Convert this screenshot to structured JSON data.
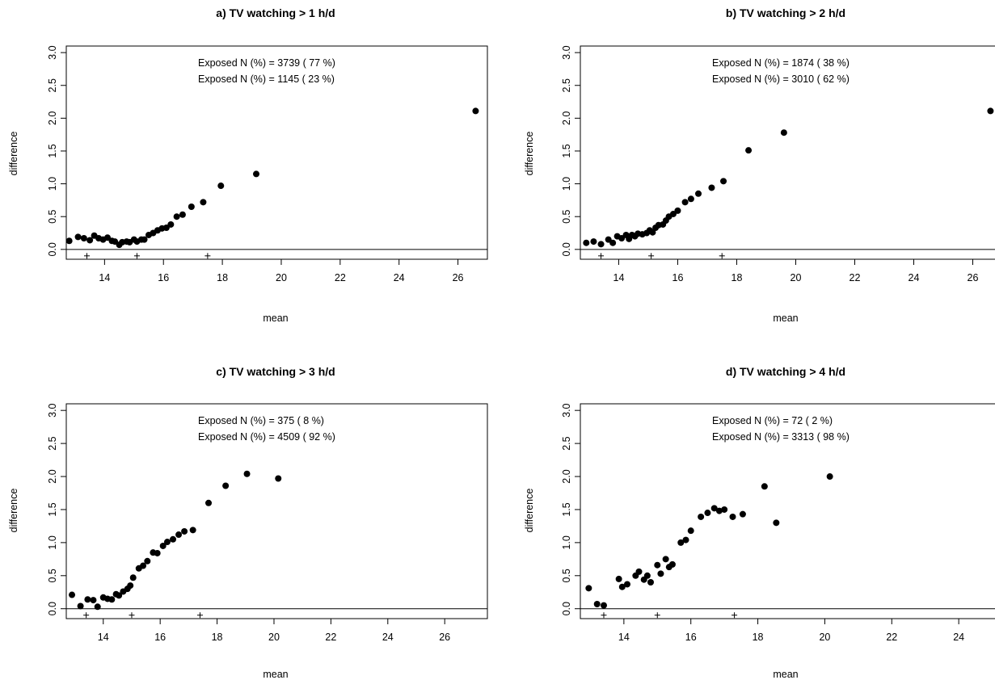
{
  "colors": {
    "ink": "#000000",
    "background": "#ffffff"
  },
  "panels": [
    {
      "title": "a) TV watching > 1 h/d",
      "xlabel": "mean",
      "ylabel": "difference",
      "annotations": [
        "Exposed N (%) =  3739 ( 77 %)",
        "Exposed N (%) =  1145 ( 23 %)"
      ],
      "x_tick_labels": [
        "14",
        "16",
        "18",
        "20",
        "22",
        "24",
        "26"
      ],
      "y_tick_labels": [
        "0.0",
        "0.5",
        "1.0",
        "1.5",
        "2.0",
        "2.5",
        "3.0"
      ]
    },
    {
      "title": "b) TV watching > 2 h/d",
      "xlabel": "mean",
      "ylabel": "difference",
      "annotations": [
        "Exposed N (%) =  1874 ( 38 %)",
        "Exposed N (%) =  3010 ( 62 %)"
      ],
      "x_tick_labels": [
        "14",
        "16",
        "18",
        "20",
        "22",
        "24",
        "26"
      ],
      "y_tick_labels": [
        "0.0",
        "0.5",
        "1.0",
        "1.5",
        "2.0",
        "2.5",
        "3.0"
      ]
    },
    {
      "title": "c) TV watching > 3 h/d",
      "xlabel": "mean",
      "ylabel": "difference",
      "annotations": [
        "Exposed N (%) =  375 ( 8 %)",
        "Exposed N (%) =  4509 ( 92 %)"
      ],
      "x_tick_labels": [
        "14",
        "16",
        "18",
        "20",
        "22",
        "24",
        "26"
      ],
      "y_tick_labels": [
        "0.0",
        "0.5",
        "1.0",
        "1.5",
        "2.0",
        "2.5",
        "3.0"
      ]
    },
    {
      "title": "d) TV watching > 4 h/d",
      "xlabel": "mean",
      "ylabel": "difference",
      "annotations": [
        "Exposed N (%) =  72 ( 2 %)",
        "Exposed N (%) =  3313 ( 98 %)"
      ],
      "x_tick_labels": [
        "14",
        "16",
        "18",
        "20",
        "22",
        "24"
      ],
      "y_tick_labels": [
        "0.0",
        "0.5",
        "1.0",
        "1.5",
        "2.0",
        "2.5",
        "3.0"
      ]
    }
  ],
  "chart_data": [
    {
      "type": "scatter",
      "title": "a) TV watching > 1 h/d",
      "xlabel": "mean",
      "ylabel": "difference",
      "xlim": [
        12.7,
        27.0
      ],
      "ylim": [
        -0.15,
        3.1
      ],
      "xticks": [
        14,
        16,
        18,
        20,
        22,
        24,
        26
      ],
      "yticks": [
        0.0,
        0.5,
        1.0,
        1.5,
        2.0,
        2.5,
        3.0
      ],
      "reference_line_y": 0,
      "plus_markers_x": [
        13.4,
        15.1,
        17.5
      ],
      "points": [
        [
          12.8,
          0.13
        ],
        [
          13.1,
          0.19
        ],
        [
          13.3,
          0.17
        ],
        [
          13.5,
          0.14
        ],
        [
          13.65,
          0.21
        ],
        [
          13.8,
          0.17
        ],
        [
          13.95,
          0.15
        ],
        [
          14.1,
          0.18
        ],
        [
          14.25,
          0.13
        ],
        [
          14.35,
          0.12
        ],
        [
          14.5,
          0.07
        ],
        [
          14.6,
          0.11
        ],
        [
          14.75,
          0.12
        ],
        [
          14.85,
          0.11
        ],
        [
          15.0,
          0.15
        ],
        [
          15.1,
          0.12
        ],
        [
          15.25,
          0.15
        ],
        [
          15.35,
          0.15
        ],
        [
          15.5,
          0.22
        ],
        [
          15.65,
          0.25
        ],
        [
          15.8,
          0.29
        ],
        [
          15.95,
          0.32
        ],
        [
          16.1,
          0.33
        ],
        [
          16.25,
          0.38
        ],
        [
          16.45,
          0.5
        ],
        [
          16.65,
          0.53
        ],
        [
          16.95,
          0.65
        ],
        [
          17.35,
          0.72
        ],
        [
          17.95,
          0.97
        ],
        [
          19.15,
          1.15
        ],
        [
          26.6,
          2.11
        ]
      ]
    },
    {
      "type": "scatter",
      "title": "b) TV watching > 2 h/d",
      "xlabel": "mean",
      "ylabel": "difference",
      "xlim": [
        12.7,
        27.0
      ],
      "ylim": [
        -0.15,
        3.1
      ],
      "xticks": [
        14,
        16,
        18,
        20,
        22,
        24,
        26
      ],
      "yticks": [
        0.0,
        0.5,
        1.0,
        1.5,
        2.0,
        2.5,
        3.0
      ],
      "reference_line_y": 0,
      "plus_markers_x": [
        13.4,
        15.1,
        17.5
      ],
      "points": [
        [
          12.9,
          0.1
        ],
        [
          13.15,
          0.12
        ],
        [
          13.4,
          0.08
        ],
        [
          13.65,
          0.15
        ],
        [
          13.8,
          0.1
        ],
        [
          13.95,
          0.2
        ],
        [
          14.1,
          0.17
        ],
        [
          14.25,
          0.22
        ],
        [
          14.35,
          0.16
        ],
        [
          14.45,
          0.22
        ],
        [
          14.55,
          0.2
        ],
        [
          14.65,
          0.24
        ],
        [
          14.8,
          0.23
        ],
        [
          14.95,
          0.25
        ],
        [
          15.05,
          0.29
        ],
        [
          15.15,
          0.26
        ],
        [
          15.25,
          0.33
        ],
        [
          15.35,
          0.37
        ],
        [
          15.5,
          0.38
        ],
        [
          15.6,
          0.44
        ],
        [
          15.7,
          0.5
        ],
        [
          15.85,
          0.54
        ],
        [
          16.0,
          0.59
        ],
        [
          16.25,
          0.72
        ],
        [
          16.45,
          0.77
        ],
        [
          16.7,
          0.85
        ],
        [
          17.15,
          0.94
        ],
        [
          17.55,
          1.04
        ],
        [
          18.4,
          1.51
        ],
        [
          19.6,
          1.78
        ],
        [
          26.6,
          2.11
        ]
      ]
    },
    {
      "type": "scatter",
      "title": "c) TV watching > 3 h/d",
      "xlabel": "mean",
      "ylabel": "difference",
      "xlim": [
        12.7,
        27.5
      ],
      "ylim": [
        -0.15,
        3.1
      ],
      "xticks": [
        14,
        16,
        18,
        20,
        22,
        24,
        26
      ],
      "yticks": [
        0.0,
        0.5,
        1.0,
        1.5,
        2.0,
        2.5,
        3.0
      ],
      "reference_line_y": 0,
      "plus_markers_x": [
        13.4,
        15.0,
        17.4
      ],
      "points": [
        [
          12.9,
          0.21
        ],
        [
          13.2,
          0.04
        ],
        [
          13.45,
          0.14
        ],
        [
          13.65,
          0.13
        ],
        [
          13.8,
          0.03
        ],
        [
          14.0,
          0.17
        ],
        [
          14.15,
          0.15
        ],
        [
          14.3,
          0.14
        ],
        [
          14.45,
          0.22
        ],
        [
          14.55,
          0.2
        ],
        [
          14.7,
          0.26
        ],
        [
          14.85,
          0.3
        ],
        [
          14.95,
          0.35
        ],
        [
          15.05,
          0.47
        ],
        [
          15.25,
          0.61
        ],
        [
          15.4,
          0.65
        ],
        [
          15.55,
          0.72
        ],
        [
          15.75,
          0.85
        ],
        [
          15.9,
          0.84
        ],
        [
          16.1,
          0.95
        ],
        [
          16.25,
          1.01
        ],
        [
          16.45,
          1.05
        ],
        [
          16.65,
          1.12
        ],
        [
          16.85,
          1.17
        ],
        [
          17.15,
          1.19
        ],
        [
          17.7,
          1.6
        ],
        [
          18.3,
          1.86
        ],
        [
          19.05,
          2.04
        ],
        [
          20.15,
          1.97
        ]
      ]
    },
    {
      "type": "scatter",
      "title": "d) TV watching > 4 h/d",
      "xlabel": "mean",
      "ylabel": "difference",
      "xlim": [
        12.7,
        25.3
      ],
      "ylim": [
        -0.15,
        3.1
      ],
      "xticks": [
        14,
        16,
        18,
        20,
        22,
        24
      ],
      "yticks": [
        0.0,
        0.5,
        1.0,
        1.5,
        2.0,
        2.5,
        3.0
      ],
      "reference_line_y": 0,
      "plus_markers_x": [
        13.4,
        15.0,
        17.3
      ],
      "points": [
        [
          12.95,
          0.31
        ],
        [
          13.2,
          0.07
        ],
        [
          13.4,
          0.05
        ],
        [
          13.85,
          0.45
        ],
        [
          13.95,
          0.33
        ],
        [
          14.1,
          0.37
        ],
        [
          14.35,
          0.5
        ],
        [
          14.45,
          0.56
        ],
        [
          14.6,
          0.44
        ],
        [
          14.7,
          0.5
        ],
        [
          14.8,
          0.4
        ],
        [
          15.0,
          0.66
        ],
        [
          15.1,
          0.53
        ],
        [
          15.25,
          0.75
        ],
        [
          15.35,
          0.63
        ],
        [
          15.45,
          0.67
        ],
        [
          15.7,
          1.0
        ],
        [
          15.85,
          1.04
        ],
        [
          16.0,
          1.18
        ],
        [
          16.3,
          1.39
        ],
        [
          16.5,
          1.45
        ],
        [
          16.7,
          1.52
        ],
        [
          16.85,
          1.48
        ],
        [
          17.0,
          1.5
        ],
        [
          17.25,
          1.39
        ],
        [
          17.55,
          1.43
        ],
        [
          18.2,
          1.85
        ],
        [
          18.55,
          1.3
        ],
        [
          20.15,
          2.0
        ]
      ]
    }
  ]
}
